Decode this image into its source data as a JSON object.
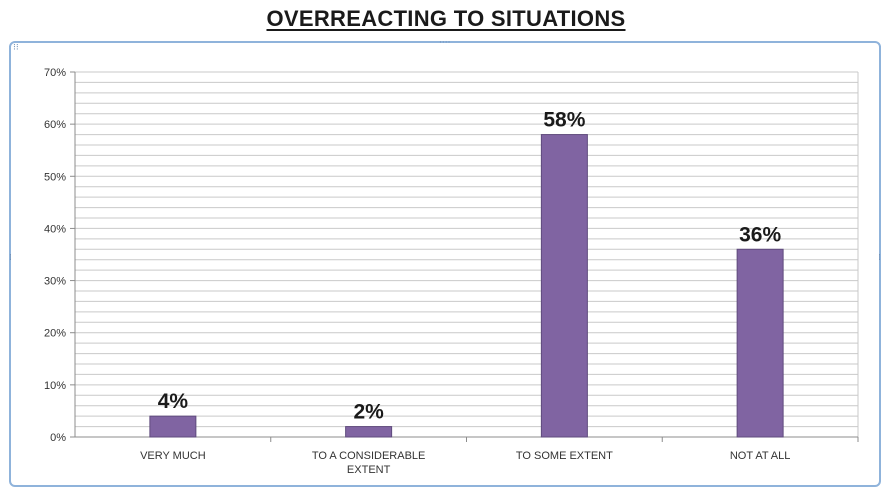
{
  "chart_data": {
    "type": "bar",
    "title": "OVERREACTING TO SITUATIONS",
    "categories": [
      [
        "VERY MUCH"
      ],
      [
        "TO A CONSIDERABLE",
        "EXTENT"
      ],
      [
        "TO SOME EXTENT"
      ],
      [
        "NOT AT ALL"
      ]
    ],
    "values": [
      4,
      2,
      58,
      36
    ],
    "data_labels": [
      "4%",
      "2%",
      "58%",
      "36%"
    ],
    "y_ticks": [
      "0%",
      "10%",
      "20%",
      "30%",
      "40%",
      "50%",
      "60%",
      "70%"
    ],
    "ylim": [
      0,
      70
    ],
    "grid": true,
    "legend": "none",
    "colors": {
      "bar": "#8064a2",
      "bar_edge": "#5f4b7d",
      "plot_background": "#ffffff",
      "grid": "#c9c9c9",
      "frame_border": "#8fb3db"
    }
  }
}
